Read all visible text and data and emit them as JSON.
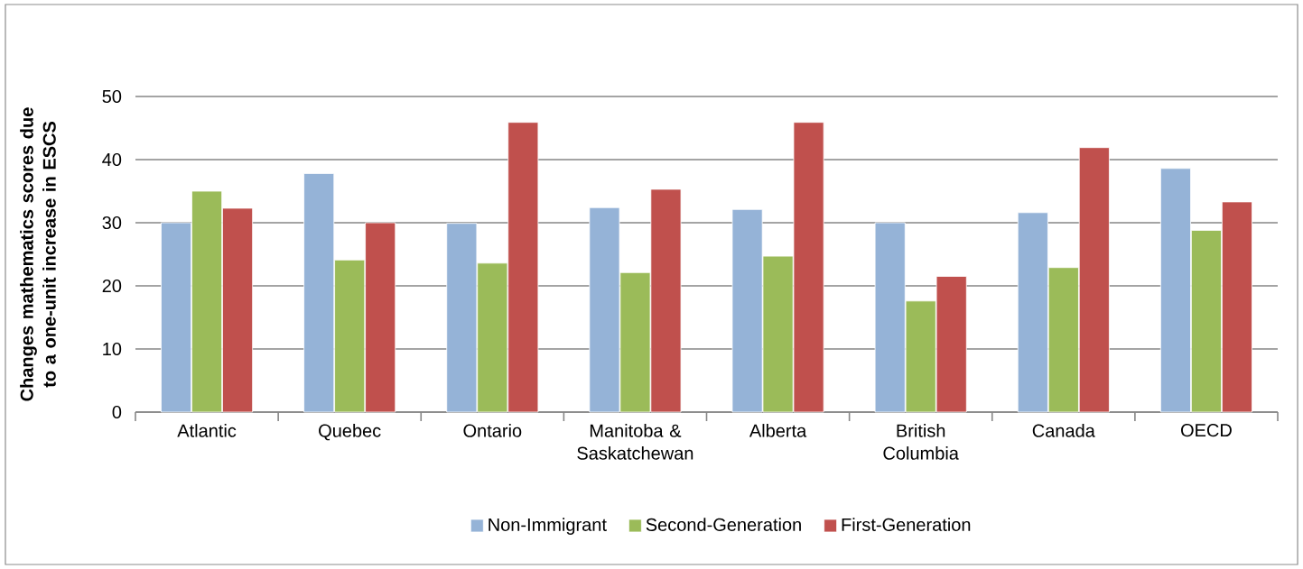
{
  "chart_data": {
    "type": "bar",
    "ylabel": "Changes mathematics scores due to a one-unit increase in ESCS",
    "categories": [
      "Atlantic",
      "Quebec",
      "Ontario",
      "Manitoba & Saskatchewan",
      "Alberta",
      "British Columbia",
      "Canada",
      "OECD"
    ],
    "series": [
      {
        "name": "Non-Immigrant",
        "color": "#95b3d7",
        "values": [
          30,
          37.8,
          29.9,
          32.4,
          32.1,
          30,
          31.6,
          38.6
        ]
      },
      {
        "name": "Second-Generation",
        "color": "#9bbb59",
        "values": [
          35,
          24.1,
          23.6,
          22.1,
          24.7,
          17.6,
          22.9,
          28.8
        ]
      },
      {
        "name": "First-Generation",
        "color": "#c0504d",
        "values": [
          32.3,
          30,
          45.9,
          35.3,
          45.9,
          21.5,
          41.9,
          33.3
        ]
      }
    ],
    "ylim": [
      0,
      50
    ],
    "yticks": [
      0,
      10,
      20,
      30,
      40,
      50
    ],
    "grid": "y",
    "legend": "bottom"
  }
}
